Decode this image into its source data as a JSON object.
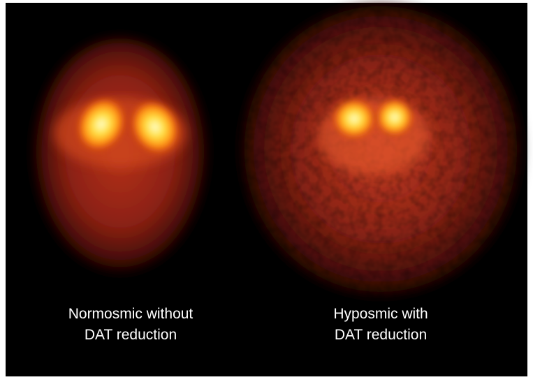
{
  "panels": [
    {
      "caption_lines": [
        "Normosmic without",
        "DAT reduction"
      ]
    },
    {
      "caption_lines": [
        "Hyposmic with",
        "DAT reduction"
      ]
    }
  ]
}
